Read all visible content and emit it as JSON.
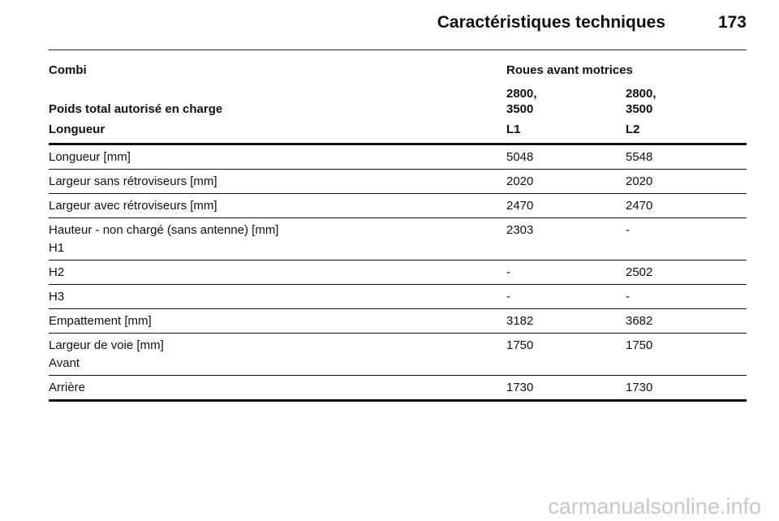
{
  "header": {
    "title": "Caractéristiques techniques",
    "page_number": "173"
  },
  "table": {
    "intro": [
      "Combi",
      "Roues avant motrices"
    ],
    "weight": [
      "Poids total autorisé en charge",
      "2800,\n3500",
      "2800,\n3500"
    ],
    "head": [
      "Longueur",
      "L1",
      "L2"
    ],
    "rows": [
      [
        "Longueur [mm]",
        "5048",
        "5548"
      ],
      [
        "Largeur sans rétroviseurs [mm]",
        "2020",
        "2020"
      ],
      [
        "Largeur avec rétroviseurs [mm]",
        "2470",
        "2470"
      ],
      [
        "Hauteur - non chargé (sans antenne) [mm]\nH1",
        "2303",
        "-"
      ],
      [
        "H2",
        "-",
        "2502"
      ],
      [
        "H3",
        "-",
        "-"
      ],
      [
        "Empattement [mm]",
        "3182",
        "3682"
      ],
      [
        "Largeur de voie [mm]\nAvant",
        "1750",
        "1750"
      ],
      [
        "Arrière",
        "1730",
        "1730"
      ]
    ]
  },
  "watermark": "carmanualsonline.info"
}
